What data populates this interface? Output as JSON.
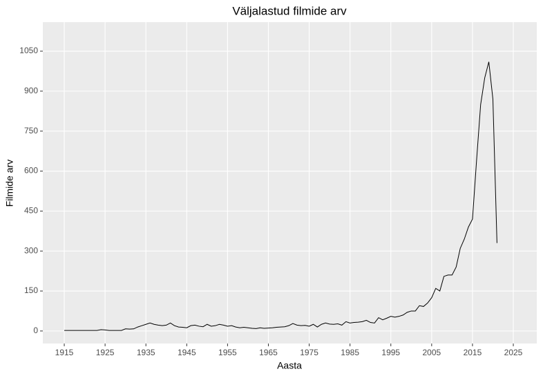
{
  "chart_data": {
    "type": "line",
    "title": "Väljalastud filmide arv",
    "x_label": "Aasta",
    "y_label": "Filmide arv",
    "x": [
      1915,
      1916,
      1917,
      1918,
      1919,
      1920,
      1921,
      1922,
      1923,
      1924,
      1925,
      1926,
      1927,
      1928,
      1929,
      1930,
      1931,
      1932,
      1933,
      1934,
      1935,
      1936,
      1937,
      1938,
      1939,
      1940,
      1941,
      1942,
      1943,
      1944,
      1945,
      1946,
      1947,
      1948,
      1949,
      1950,
      1951,
      1952,
      1953,
      1954,
      1955,
      1956,
      1957,
      1958,
      1959,
      1960,
      1961,
      1962,
      1963,
      1964,
      1965,
      1966,
      1967,
      1968,
      1969,
      1970,
      1971,
      1972,
      1973,
      1974,
      1975,
      1976,
      1977,
      1978,
      1979,
      1980,
      1981,
      1982,
      1983,
      1984,
      1985,
      1986,
      1987,
      1988,
      1989,
      1990,
      1991,
      1992,
      1993,
      1994,
      1995,
      1996,
      1997,
      1998,
      1999,
      2000,
      2001,
      2002,
      2003,
      2004,
      2005,
      2006,
      2007,
      2008,
      2009,
      2010,
      2011,
      2012,
      2013,
      2014,
      2015,
      2016,
      2017,
      2018,
      2019,
      2020,
      2021
    ],
    "values": [
      2,
      2,
      2,
      2,
      2,
      2,
      2,
      2,
      2,
      5,
      4,
      2,
      2,
      2,
      2,
      8,
      7,
      8,
      15,
      20,
      25,
      30,
      25,
      22,
      20,
      22,
      30,
      20,
      15,
      14,
      12,
      20,
      22,
      18,
      16,
      25,
      18,
      20,
      25,
      22,
      18,
      20,
      15,
      12,
      14,
      12,
      10,
      9,
      12,
      10,
      11,
      12,
      14,
      15,
      16,
      20,
      28,
      22,
      20,
      21,
      18,
      25,
      15,
      25,
      30,
      26,
      25,
      27,
      22,
      35,
      30,
      32,
      33,
      35,
      40,
      32,
      30,
      50,
      42,
      48,
      55,
      52,
      55,
      60,
      70,
      75,
      75,
      95,
      92,
      105,
      125,
      160,
      150,
      205,
      210,
      210,
      240,
      310,
      345,
      390,
      420,
      640,
      850,
      950,
      1010,
      870,
      330
    ],
    "color": "#000000",
    "xlim": [
      1909.75,
      2030.75
    ],
    "xticks": [
      1915,
      1925,
      1935,
      1945,
      1955,
      1965,
      1975,
      1985,
      1995,
      2005,
      2015,
      2025
    ],
    "ylim": [
      -47,
      1159
    ],
    "yticks": [
      0,
      150,
      300,
      450,
      600,
      750,
      900,
      1050
    ],
    "grid": true
  }
}
